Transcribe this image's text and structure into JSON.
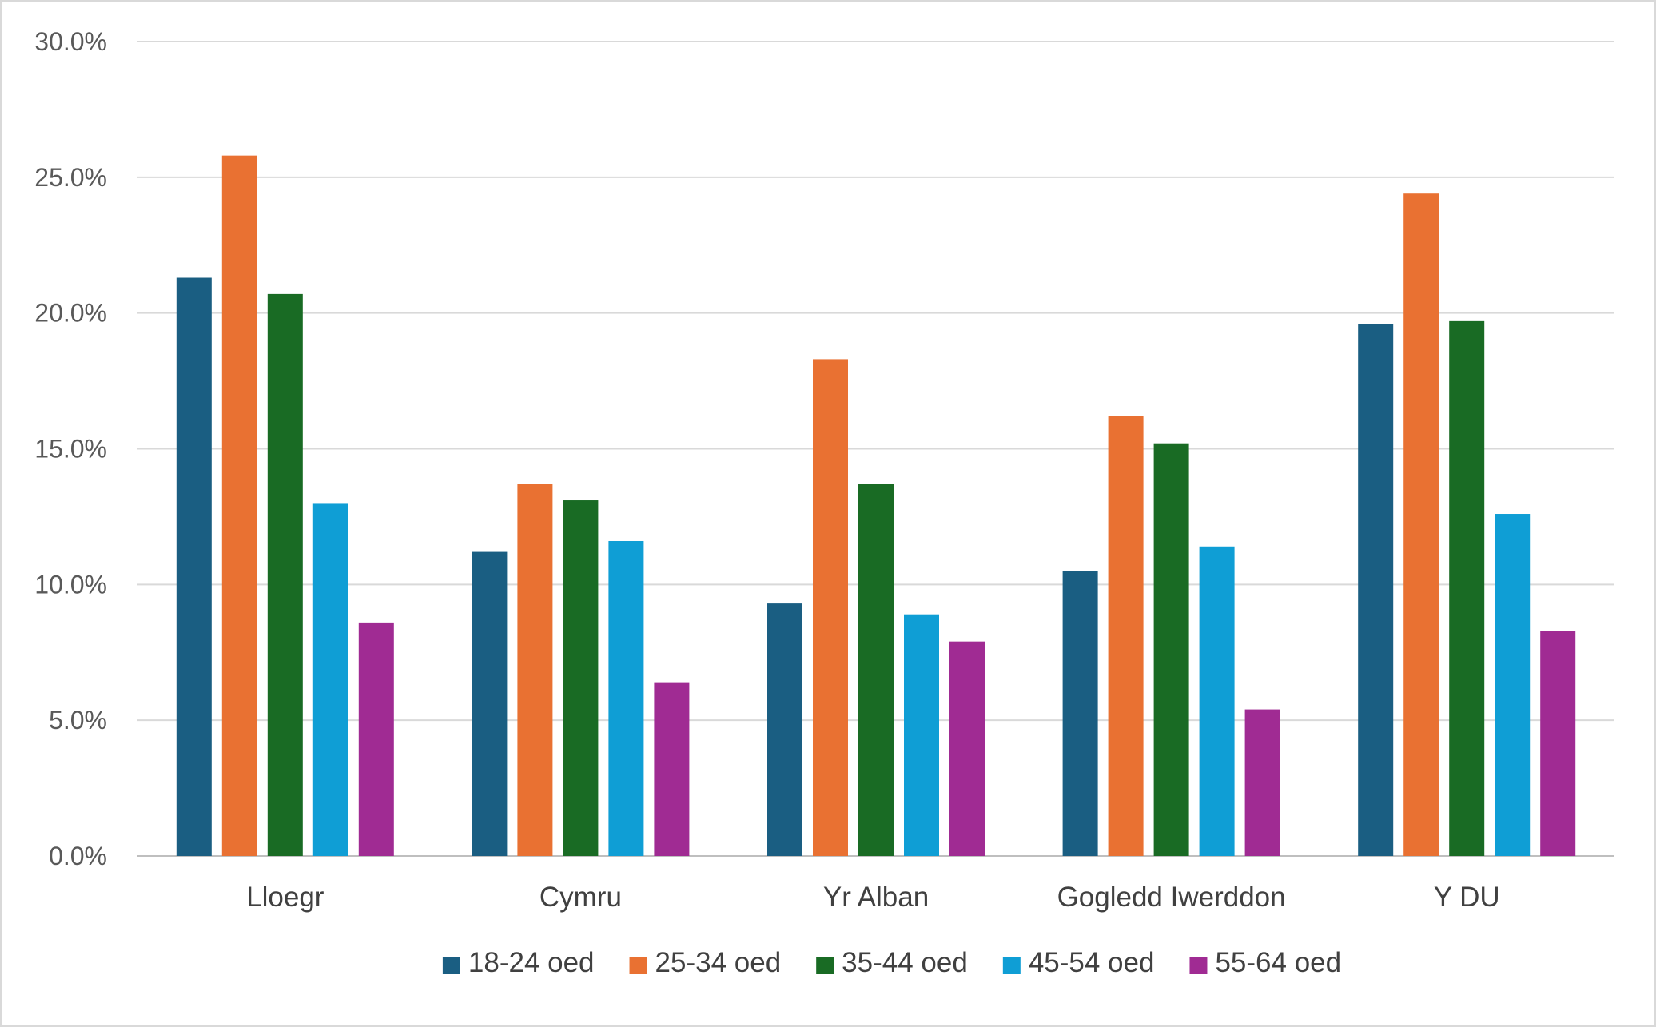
{
  "chart_data": {
    "type": "bar",
    "categories": [
      "Lloegr",
      "Cymru",
      "Yr Alban",
      "Gogledd Iwerddon",
      "Y DU"
    ],
    "series": [
      {
        "name": "18-24 oed",
        "color": "#1a5e82",
        "values": [
          21.3,
          11.2,
          9.3,
          10.5,
          19.6
        ]
      },
      {
        "name": "25-34 oed",
        "color": "#e97132",
        "values": [
          25.8,
          13.7,
          18.3,
          16.2,
          24.4
        ]
      },
      {
        "name": "35-44 oed",
        "color": "#196b24",
        "values": [
          20.7,
          13.1,
          13.7,
          15.2,
          19.7
        ]
      },
      {
        "name": "45-54 oed",
        "color": "#0f9ed5",
        "values": [
          13.0,
          11.6,
          8.9,
          11.4,
          12.6
        ]
      },
      {
        "name": "55-64 oed",
        "color": "#a02b93",
        "values": [
          8.6,
          6.4,
          7.9,
          5.4,
          8.3
        ]
      }
    ],
    "y_ticks": [
      "0.0%",
      "5.0%",
      "10.0%",
      "15.0%",
      "20.0%",
      "25.0%",
      "30.0%"
    ],
    "ylim": [
      0,
      30
    ],
    "grid": true,
    "legend_position": "bottom"
  }
}
